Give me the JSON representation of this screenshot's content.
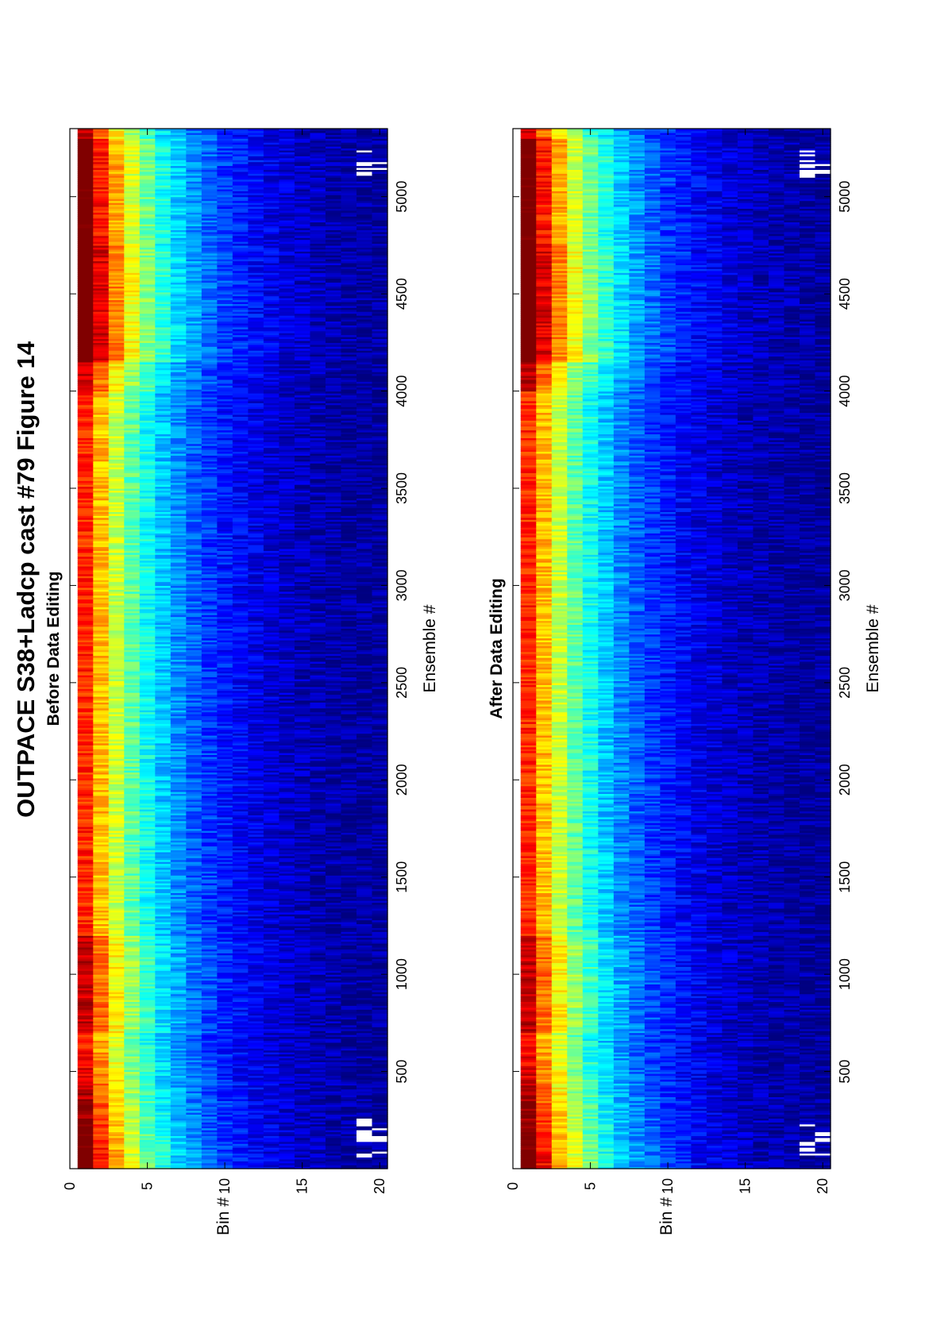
{
  "figure": {
    "title": "OUTPACE S38+Ladcp cast #79  Figure 14",
    "orientation": "rotated-90-ccw",
    "colormap": "jet"
  },
  "chart_data": [
    {
      "type": "heatmap",
      "title": "Before Data Editing",
      "xlabel": "Ensemble #",
      "ylabel": "Bin #",
      "xlim": [
        0,
        5350
      ],
      "ylim": [
        0,
        20.5
      ],
      "y_reversed": true,
      "xticks": [
        500,
        1000,
        1500,
        2000,
        2500,
        3000,
        3500,
        4000,
        4500,
        5000
      ],
      "yticks": [
        0,
        5,
        10,
        15,
        20
      ],
      "grid": false,
      "colorbar": false,
      "description_of_values": {
        "intensity_peak_bins": [
          1,
          2
        ],
        "decay_with_bin": "high at bins 1-4, decreasing to low by bins 15-20",
        "descent_feature_ensembles": [
          0,
          700
        ],
        "bottom_feature_ensembles": [
          4200,
          4800
        ],
        "missing_data_patches": [
          {
            "ensemble_range": [
              60,
              260
            ],
            "bins": [
              19,
              20
            ]
          },
          {
            "ensemble_range": [
              5100,
              5230
            ],
            "bins": [
              19,
              20
            ]
          }
        ]
      }
    },
    {
      "type": "heatmap",
      "title": "After Data Editing",
      "xlabel": "Ensemble #",
      "ylabel": "Bin #",
      "xlim": [
        0,
        5350
      ],
      "ylim": [
        0,
        20.5
      ],
      "y_reversed": true,
      "xticks": [
        500,
        1000,
        1500,
        2000,
        2500,
        3000,
        3500,
        4000,
        4500,
        5000
      ],
      "yticks": [
        0,
        5,
        10,
        15,
        20
      ],
      "grid": false,
      "colorbar": false,
      "description_of_values": {
        "intensity_peak_bins": [
          1,
          2
        ],
        "decay_with_bin": "high at bins 1-4, decreasing to low by bins 15-20",
        "descent_feature_ensembles": [
          0,
          700
        ],
        "bottom_feature_ensembles": [
          4200,
          4800
        ],
        "missing_data_patches": [
          {
            "ensemble_range": [
              60,
              260
            ],
            "bins": [
              19,
              20
            ]
          },
          {
            "ensemble_range": [
              5100,
              5230
            ],
            "bins": [
              19,
              20
            ]
          }
        ]
      }
    }
  ]
}
